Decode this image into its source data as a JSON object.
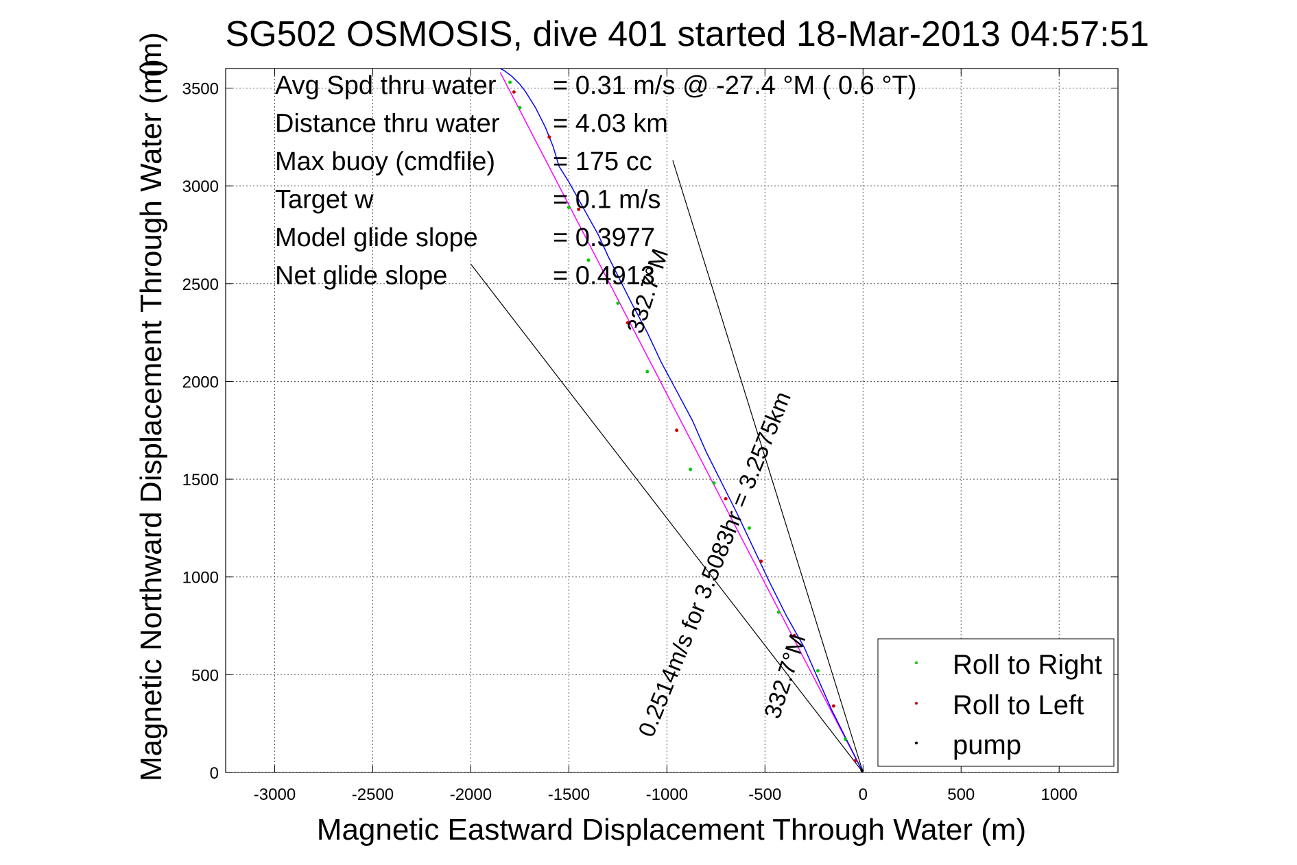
{
  "figure": {
    "title": "SG502 OSMOSIS, dive 401 started 18-Mar-2013 04:57:51",
    "title_overlap_glyph": "(m)"
  },
  "chart_data": {
    "type": "line",
    "xlabel": "Magnetic Eastward Displacement Through Water (m)",
    "ylabel": "Magnetic Northward Displacement Through Water (m)",
    "xlim": [
      -3250,
      1300
    ],
    "ylim": [
      0,
      3600
    ],
    "xticks": [
      -3000,
      -2500,
      -2000,
      -1500,
      -1000,
      -500,
      0,
      500,
      1000
    ],
    "yticks": [
      0,
      500,
      1000,
      1500,
      2000,
      2500,
      3000,
      3500
    ],
    "grid": true,
    "legend_position": "bottom-right",
    "legend": [
      {
        "label": "Roll to Right",
        "color": "#00cc00"
      },
      {
        "label": "Roll to Left",
        "color": "#cc0000"
      },
      {
        "label": "pump",
        "color": "#000000"
      }
    ],
    "stats": [
      {
        "label": "Avg Spd thru water",
        "value": "=  0.31 m/s @ -27.4 °M (  0.6 °T)"
      },
      {
        "label": "Distance thru water",
        "value": "=  4.03 km"
      },
      {
        "label": "Max buoy (cmdfile)",
        "value": "= 175 cc"
      },
      {
        "label": "Target w",
        "value": "= 0.1 m/s"
      },
      {
        "label": "Model glide slope",
        "value": "= 0.3977"
      },
      {
        "label": "Net glide slope",
        "value": "= 0.4913"
      }
    ],
    "track": {
      "color": "#0000ff",
      "x": [
        0,
        -80,
        -160,
        -230,
        -300,
        -390,
        -480,
        -560,
        -640,
        -720,
        -800,
        -870,
        -950,
        -1030,
        -1100,
        -1180,
        -1250,
        -1300,
        -1350,
        -1400,
        -1450,
        -1500,
        -1550,
        -1580,
        -1620,
        -1670,
        -1720,
        -1750,
        -1790,
        -1830,
        -1850
      ],
      "y": [
        0,
        160,
        320,
        480,
        640,
        800,
        980,
        1150,
        1320,
        1480,
        1640,
        1800,
        1950,
        2100,
        2250,
        2400,
        2540,
        2640,
        2750,
        2840,
        2930,
        3020,
        3100,
        3200,
        3300,
        3400,
        3480,
        3520,
        3560,
        3590,
        3600
      ]
    },
    "direction_line": {
      "color": "#ff00ff",
      "x": [
        0,
        -1850
      ],
      "y": [
        0,
        3580
      ]
    },
    "guide_lines": [
      {
        "x": [
          0,
          -2000
        ],
        "y": [
          0,
          2600
        ]
      },
      {
        "x": [
          0,
          -970
        ],
        "y": [
          0,
          3130
        ]
      }
    ],
    "roll_right_points": {
      "x": [
        -90,
        -230,
        -430,
        -580,
        -760,
        -880,
        -1100,
        -1250,
        -1400,
        -1500,
        -1750,
        -1800
      ],
      "y": [
        170,
        520,
        820,
        1250,
        1480,
        1550,
        2050,
        2400,
        2620,
        2890,
        3400,
        3530
      ]
    },
    "roll_left_points": {
      "x": [
        -40,
        -150,
        -350,
        -520,
        -700,
        -950,
        -1200,
        -1450,
        -1600,
        -1780
      ],
      "y": [
        60,
        340,
        700,
        1080,
        1400,
        1750,
        2300,
        2880,
        3250,
        3480
      ]
    },
    "pump_points": {
      "x": [
        -5
      ],
      "y": [
        10
      ]
    },
    "annotations": [
      {
        "text": "332.7°M",
        "x": -360,
        "y": 480,
        "rotation": -72
      },
      {
        "text": "0.2514m/s for 3.5083hr = 3.2575km",
        "x": -720,
        "y": 1050,
        "rotation": -68
      },
      {
        "text": "332.7°M",
        "x": -1060,
        "y": 2450,
        "rotation": -72
      }
    ]
  }
}
